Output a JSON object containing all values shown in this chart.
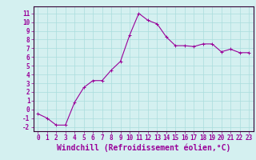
{
  "x": [
    0,
    1,
    2,
    3,
    4,
    5,
    6,
    7,
    8,
    9,
    10,
    11,
    12,
    13,
    14,
    15,
    16,
    17,
    18,
    19,
    20,
    21,
    22,
    23
  ],
  "y": [
    -0.5,
    -1.0,
    -1.8,
    -1.8,
    0.8,
    2.5,
    3.3,
    3.3,
    4.5,
    5.5,
    8.5,
    11.0,
    10.2,
    9.8,
    8.3,
    7.3,
    7.3,
    7.2,
    7.5,
    7.5,
    6.6,
    6.9,
    6.5,
    6.5
  ],
  "line_color": "#990099",
  "marker": "+",
  "marker_size": 3,
  "bg_color": "#d4f0f0",
  "grid_color": "#aadddd",
  "axis_color": "#330033",
  "tick_label_color": "#990099",
  "xlabel": "Windchill (Refroidissement éolien,°C)",
  "xlabel_color": "#990099",
  "xlabel_fontsize": 7,
  "yticks": [
    -2,
    -1,
    0,
    1,
    2,
    3,
    4,
    5,
    6,
    7,
    8,
    9,
    10,
    11
  ],
  "xticks": [
    0,
    1,
    2,
    3,
    4,
    5,
    6,
    7,
    8,
    9,
    10,
    11,
    12,
    13,
    14,
    15,
    16,
    17,
    18,
    19,
    20,
    21,
    22,
    23
  ],
  "ylim": [
    -2.5,
    11.8
  ],
  "xlim": [
    -0.5,
    23.5
  ],
  "tick_fontsize": 5.5,
  "linewidth": 0.8
}
